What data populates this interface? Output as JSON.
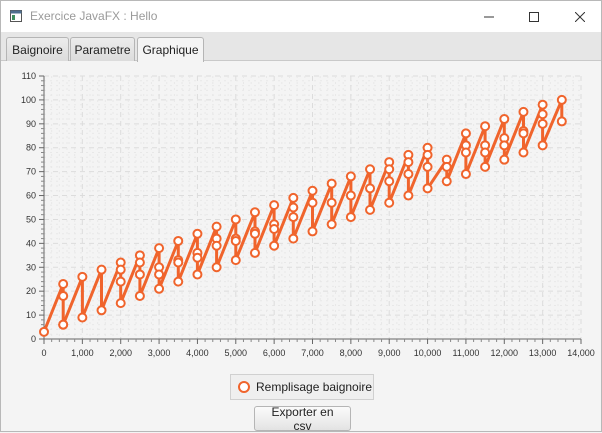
{
  "window": {
    "title": "Exercice JavaFX : Hello"
  },
  "tabs": [
    {
      "label": "Baignoire"
    },
    {
      "label": "Parametre"
    },
    {
      "label": "Graphique",
      "selected": true
    }
  ],
  "legend": {
    "label": "Remplisage baignoire"
  },
  "export_button": {
    "label": "Exporter en csv"
  },
  "colors": {
    "series": "#f0642c",
    "grid": "#dcdcdc",
    "plot_bg": "#f4f4f4"
  },
  "chart_data": {
    "type": "line",
    "title": "",
    "xlabel": "",
    "ylabel": "",
    "xlim": [
      0,
      14000
    ],
    "ylim": [
      0,
      110
    ],
    "x_ticks": [
      0,
      1000,
      2000,
      3000,
      4000,
      5000,
      6000,
      7000,
      8000,
      9000,
      10000,
      11000,
      12000,
      13000,
      14000
    ],
    "x_tick_labels": [
      "0",
      "1,000",
      "2,000",
      "3,000",
      "4,000",
      "5,000",
      "6,000",
      "7,000",
      "8,000",
      "9,000",
      "10,000",
      "11,000",
      "12,000",
      "13,000",
      "14,000"
    ],
    "y_ticks": [
      0,
      10,
      20,
      30,
      40,
      50,
      60,
      70,
      80,
      90,
      100,
      110
    ],
    "y_tick_labels": [
      "0",
      "10",
      "20",
      "30",
      "40",
      "50",
      "60",
      "70",
      "80",
      "90",
      "100",
      "110"
    ],
    "grid": true,
    "legend_position": "bottom",
    "series": [
      {
        "name": "Remplisage baignoire",
        "x": [
          0,
          500,
          500,
          500,
          500,
          1000,
          1000,
          1500,
          1500,
          2000,
          2000,
          2000,
          2000,
          2500,
          2500,
          2500,
          2500,
          3000,
          3000,
          3000,
          3000,
          3500,
          3500,
          3500,
          3500,
          4000,
          4000,
          4000,
          4000,
          4500,
          4500,
          4500,
          4500,
          5000,
          5000,
          5000,
          5000,
          5500,
          5500,
          5500,
          5500,
          6000,
          6000,
          6000,
          6000,
          6500,
          6500,
          6500,
          6500,
          7000,
          7000,
          7000,
          7500,
          7500,
          7500,
          8000,
          8000,
          8000,
          8500,
          8500,
          8500,
          9000,
          9000,
          9000,
          9000,
          9500,
          9500,
          9500,
          9500,
          10000,
          10000,
          10000,
          10000,
          10500,
          10500,
          10500,
          11000,
          11000,
          11000,
          11000,
          11500,
          11500,
          11500,
          11500,
          12000,
          12000,
          12000,
          12000,
          12500,
          12500,
          12500,
          12500,
          13000,
          13000,
          13000,
          13000,
          13500,
          13500
        ],
        "values": [
          3,
          23,
          18,
          6,
          6,
          26,
          9,
          29,
          12,
          32,
          29,
          24,
          15,
          35,
          32,
          27,
          18,
          38,
          30,
          27,
          21,
          41,
          33,
          32,
          24,
          44,
          36,
          34,
          27,
          47,
          42,
          39,
          30,
          50,
          42,
          41,
          33,
          53,
          45,
          44,
          36,
          56,
          48,
          46,
          39,
          59,
          55,
          51,
          42,
          62,
          57,
          45,
          65,
          57,
          48,
          68,
          60,
          51,
          71,
          63,
          54,
          74,
          71,
          66,
          57,
          77,
          74,
          69,
          60,
          80,
          77,
          72,
          63,
          75,
          72,
          66,
          86,
          81,
          78,
          69,
          89,
          81,
          78,
          72,
          92,
          84,
          81,
          75,
          95,
          87,
          86,
          78,
          98,
          94,
          90,
          81,
          100,
          91
        ]
      }
    ]
  }
}
